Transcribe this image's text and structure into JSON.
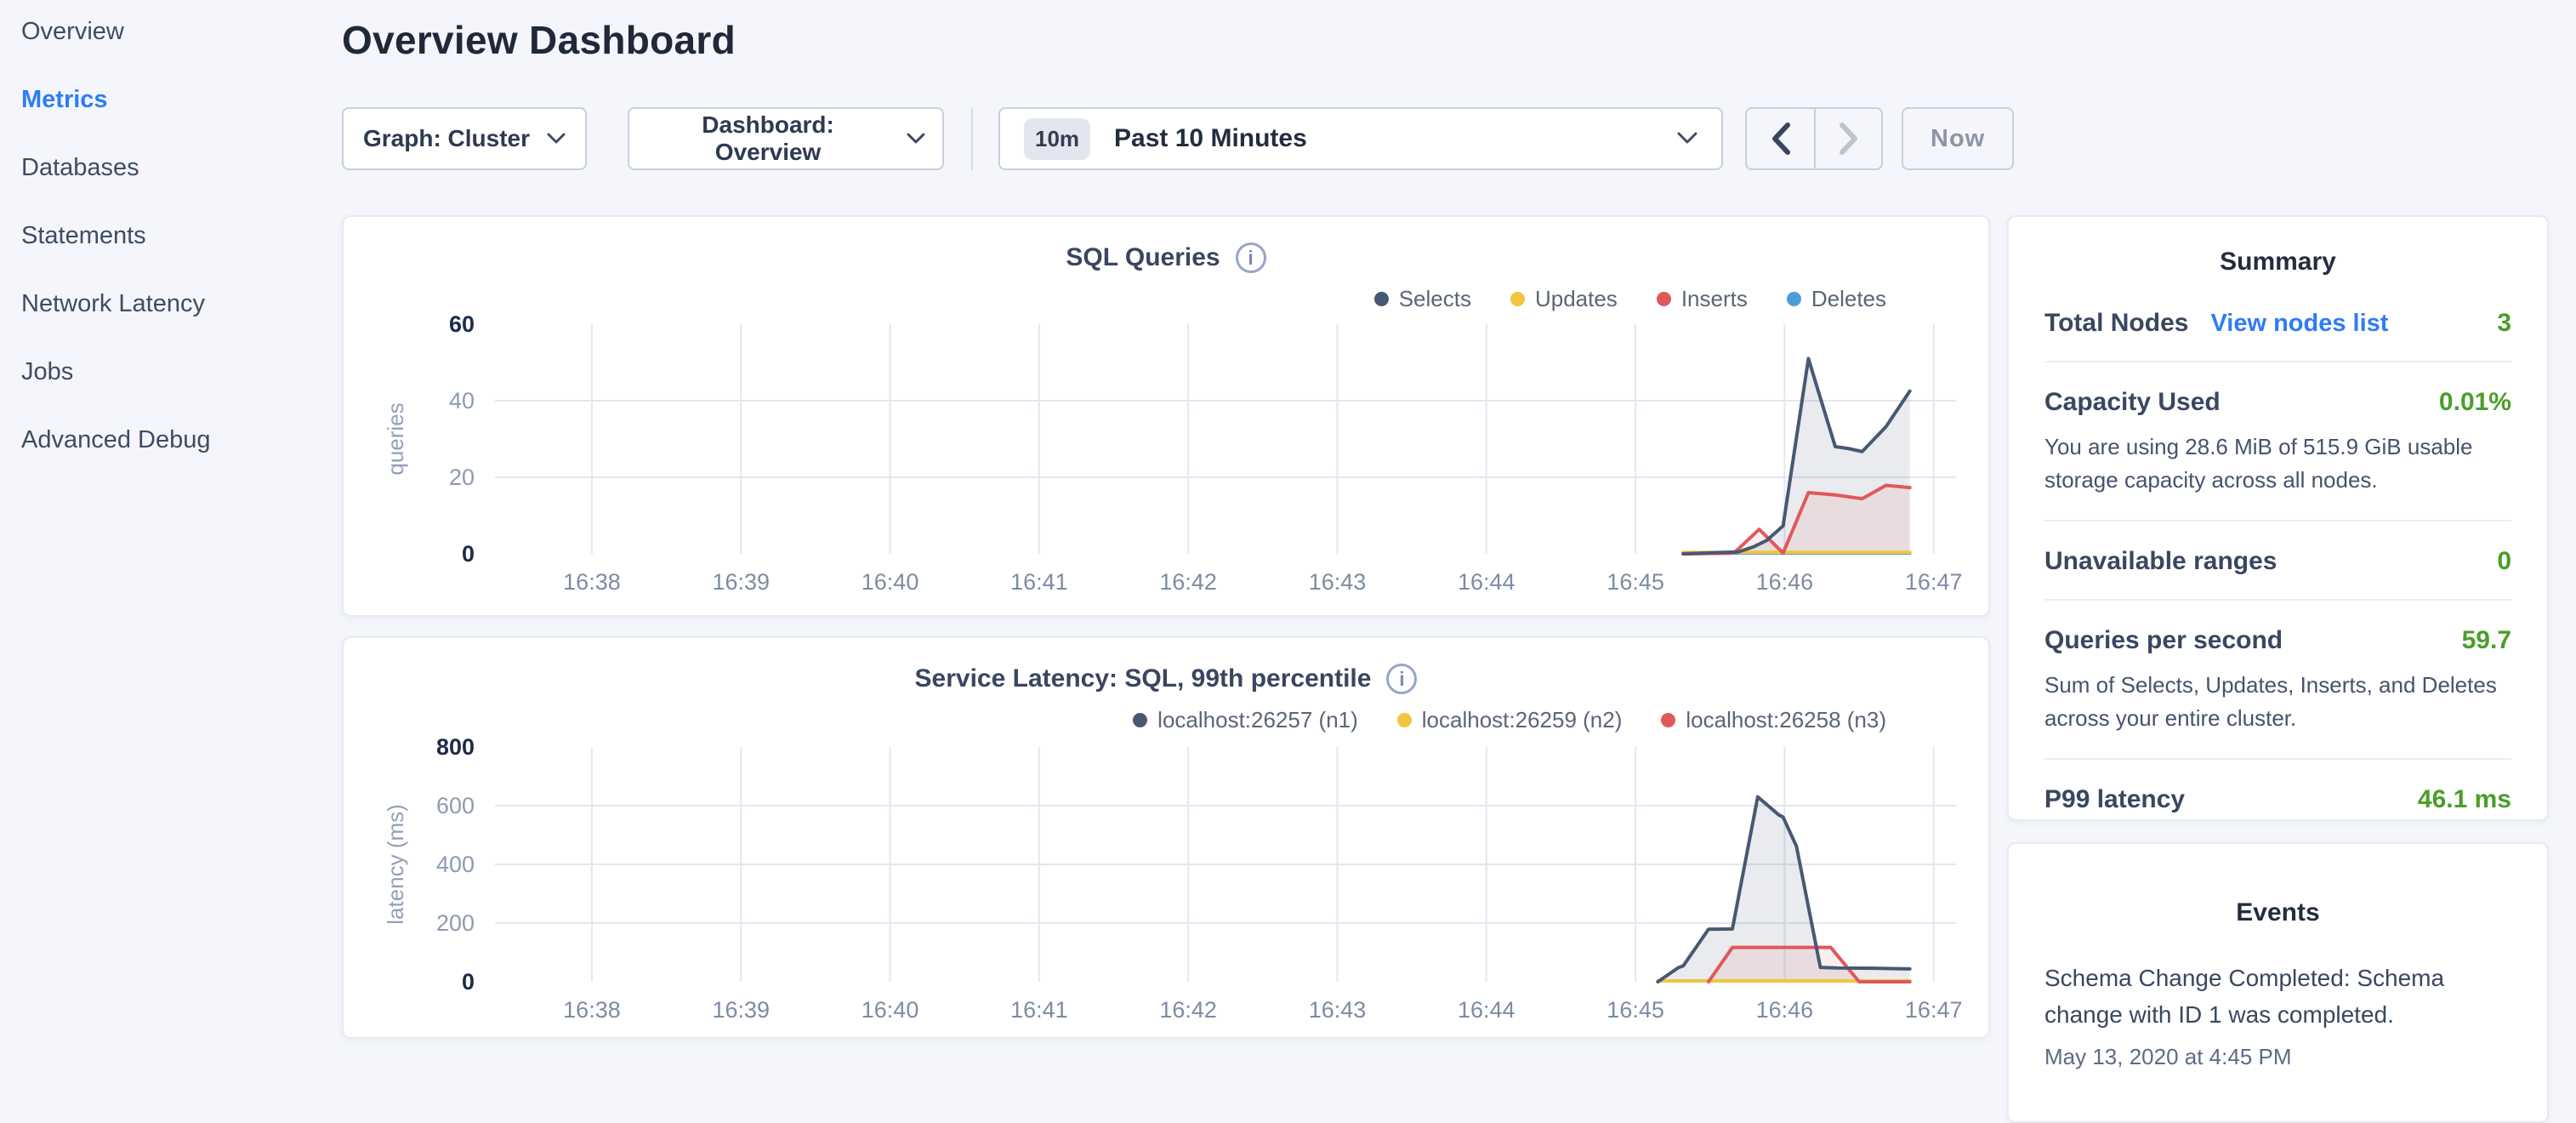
{
  "sidebar": {
    "items": [
      {
        "label": "Overview",
        "active": false
      },
      {
        "label": "Metrics",
        "active": true
      },
      {
        "label": "Databases",
        "active": false
      },
      {
        "label": "Statements",
        "active": false
      },
      {
        "label": "Network Latency",
        "active": false
      },
      {
        "label": "Jobs",
        "active": false
      },
      {
        "label": "Advanced Debug",
        "active": false
      }
    ]
  },
  "header": {
    "title": "Overview Dashboard"
  },
  "controls": {
    "graph_dropdown": {
      "label": "Graph: Cluster"
    },
    "dashboard_dropdown": {
      "label": "Dashboard: Overview"
    },
    "time_range": {
      "badge": "10m",
      "label": "Past 10 Minutes"
    },
    "now_button": "Now"
  },
  "icons": {
    "info_glyph": "i"
  },
  "summary": {
    "title": "Summary",
    "rows": [
      {
        "label": "Total Nodes",
        "link": "View nodes list",
        "value": "3"
      },
      {
        "label": "Capacity Used",
        "value": "0.01%",
        "desc": "You are using 28.6 MiB of 515.9 GiB usable storage capacity across all nodes."
      },
      {
        "label": "Unavailable ranges",
        "value": "0"
      },
      {
        "label": "Queries per second",
        "value": "59.7",
        "desc": "Sum of Selects, Updates, Inserts, and Deletes across your entire cluster."
      },
      {
        "label": "P99 latency",
        "value": "46.1 ms"
      }
    ]
  },
  "events": {
    "title": "Events",
    "items": [
      {
        "text": "Schema Change Completed: Schema change with ID 1 was completed.",
        "time": "May 13, 2020 at 4:45 PM"
      }
    ]
  },
  "chart_data": [
    {
      "type": "area",
      "title": "SQL Queries",
      "ylabel": "queries",
      "xlabel": "",
      "ylim": [
        0,
        60
      ],
      "yticks": [
        0,
        20,
        40,
        60
      ],
      "grid": true,
      "legend_position": "top-right",
      "x_domain": [
        37.35,
        47.15
      ],
      "x_ticks": [
        {
          "t": 38,
          "label": "16:38"
        },
        {
          "t": 39,
          "label": "16:39"
        },
        {
          "t": 40,
          "label": "16:40"
        },
        {
          "t": 41,
          "label": "16:41"
        },
        {
          "t": 42,
          "label": "16:42"
        },
        {
          "t": 43,
          "label": "16:43"
        },
        {
          "t": 44,
          "label": "16:44"
        },
        {
          "t": 45,
          "label": "16:45"
        },
        {
          "t": 46,
          "label": "16:46"
        },
        {
          "t": 47,
          "label": "16:47"
        }
      ],
      "series": [
        {
          "name": "Selects",
          "color": "#475872",
          "fill": "rgba(71,88,114,0.12)",
          "points": [
            [
              45.32,
              0
            ],
            [
              45.69,
              0.5
            ],
            [
              45.79,
              1.8
            ],
            [
              45.88,
              3.5
            ],
            [
              45.99,
              7.3
            ],
            [
              46.16,
              51
            ],
            [
              46.23,
              42
            ],
            [
              46.34,
              28
            ],
            [
              46.43,
              27.5
            ],
            [
              46.52,
              26.7
            ],
            [
              46.68,
              33.2
            ],
            [
              46.84,
              42.5
            ]
          ]
        },
        {
          "name": "Updates",
          "color": "#f0c541",
          "points": [
            [
              45.32,
              0.4
            ],
            [
              46.84,
              0.4
            ]
          ]
        },
        {
          "name": "Inserts",
          "color": "#e0585b",
          "fill": "rgba(224,88,91,0.10)",
          "points": [
            [
              45.32,
              0
            ],
            [
              45.66,
              0.2
            ],
            [
              45.83,
              6.4
            ],
            [
              45.99,
              0.2
            ],
            [
              46.16,
              16
            ],
            [
              46.34,
              15.4
            ],
            [
              46.52,
              14.4
            ],
            [
              46.68,
              17.9
            ],
            [
              46.84,
              17.3
            ]
          ]
        },
        {
          "name": "Deletes",
          "color": "#4b9fd8",
          "points": [
            [
              45.32,
              0.2
            ],
            [
              46.84,
              0.2
            ]
          ]
        }
      ]
    },
    {
      "type": "area",
      "title": "Service Latency: SQL, 99th percentile",
      "ylabel": "latency (ms)",
      "xlabel": "",
      "ylim": [
        0,
        800
      ],
      "yticks": [
        0,
        200,
        400,
        600,
        800
      ],
      "grid": true,
      "legend_position": "top-right",
      "x_domain": [
        37.35,
        47.15
      ],
      "x_ticks": [
        {
          "t": 38,
          "label": "16:38"
        },
        {
          "t": 39,
          "label": "16:39"
        },
        {
          "t": 40,
          "label": "16:40"
        },
        {
          "t": 41,
          "label": "16:41"
        },
        {
          "t": 42,
          "label": "16:42"
        },
        {
          "t": 43,
          "label": "16:43"
        },
        {
          "t": 44,
          "label": "16:44"
        },
        {
          "t": 45,
          "label": "16:45"
        },
        {
          "t": 46,
          "label": "16:46"
        },
        {
          "t": 47,
          "label": "16:47"
        }
      ],
      "series": [
        {
          "name": "localhost:26257 (n1)",
          "color": "#475872",
          "fill": "rgba(71,88,114,0.12)",
          "points": [
            [
              45.15,
              0
            ],
            [
              45.29,
              49
            ],
            [
              45.32,
              54
            ],
            [
              45.49,
              179
            ],
            [
              45.65,
              180
            ],
            [
              45.82,
              630
            ],
            [
              45.96,
              569
            ],
            [
              45.99,
              561
            ],
            [
              46.08,
              461
            ],
            [
              46.24,
              49
            ],
            [
              46.35,
              47
            ],
            [
              46.6,
              46
            ],
            [
              46.84,
              44
            ]
          ]
        },
        {
          "name": "localhost:26259 (n2)",
          "color": "#f0c541",
          "points": [
            [
              45.15,
              3
            ],
            [
              46.84,
              3
            ]
          ]
        },
        {
          "name": "localhost:26258 (n3)",
          "color": "#e0585b",
          "fill": "rgba(224,88,91,0.10)",
          "points": [
            [
              45.49,
              0
            ],
            [
              45.65,
              117
            ],
            [
              46.31,
              117
            ],
            [
              46.5,
              0
            ],
            [
              46.84,
              0
            ]
          ]
        }
      ]
    }
  ]
}
